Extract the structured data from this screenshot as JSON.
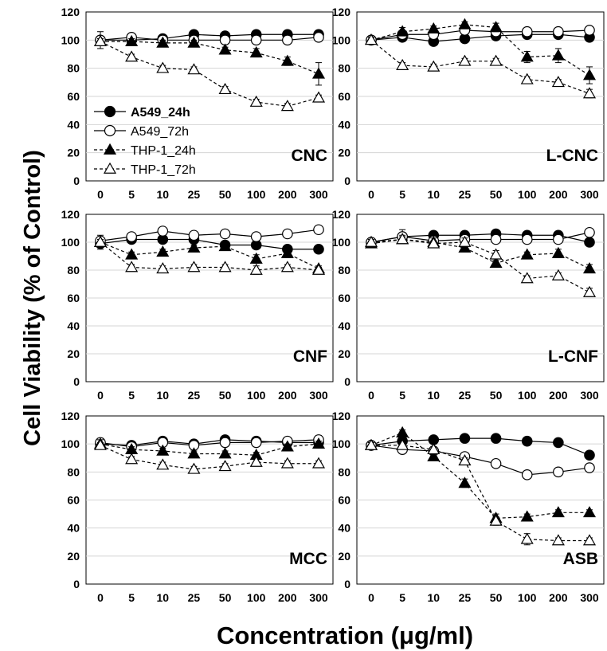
{
  "figure": {
    "ylabel": "Cell Viability (% of Control)",
    "xlabel": "Concentration (μg/ml)"
  },
  "chart_data": [
    {
      "type": "line",
      "panel_label": "CNC",
      "categories": [
        "0",
        "5",
        "10",
        "25",
        "50",
        "100",
        "200",
        "300"
      ],
      "ylim": [
        0,
        120
      ],
      "yticks": [
        "0",
        "20",
        "40",
        "60",
        "80",
        "100",
        "120"
      ],
      "grid": true,
      "legend_position": "lower-left",
      "series": [
        {
          "name": "A549_24h",
          "values": [
            100,
            100,
            101,
            104,
            103,
            104,
            104,
            104
          ],
          "errors": [
            2,
            2,
            2,
            2,
            2,
            2,
            2,
            2
          ]
        },
        {
          "name": "A549_72h",
          "values": [
            100,
            102,
            100,
            100,
            100,
            100,
            100,
            102
          ],
          "errors": [
            6,
            2,
            2,
            2,
            2,
            2,
            2,
            2
          ]
        },
        {
          "name": "THP-1_24h",
          "values": [
            99,
            99,
            98,
            98,
            93,
            91,
            85,
            76
          ],
          "errors": [
            2,
            2,
            2,
            2,
            2,
            3,
            3,
            8
          ]
        },
        {
          "name": "THP-1_72h",
          "values": [
            99,
            88,
            80,
            79,
            65,
            56,
            53,
            59
          ],
          "errors": [
            2,
            2,
            2,
            2,
            2,
            2,
            2,
            2
          ]
        }
      ]
    },
    {
      "type": "line",
      "panel_label": "L-CNC",
      "categories": [
        "0",
        "5",
        "10",
        "25",
        "50",
        "100",
        "200",
        "300"
      ],
      "ylim": [
        0,
        120
      ],
      "grid": true,
      "series": [
        {
          "name": "A549_24h",
          "values": [
            100,
            102,
            99,
            101,
            103,
            104,
            104,
            102
          ],
          "errors": [
            2,
            2,
            2,
            2,
            2,
            2,
            2,
            2
          ]
        },
        {
          "name": "A549_72h",
          "values": [
            100,
            104,
            104,
            107,
            106,
            106,
            106,
            107
          ],
          "errors": [
            2,
            2,
            2,
            2,
            2,
            2,
            2,
            2
          ]
        },
        {
          "name": "THP-1_24h",
          "values": [
            100,
            106,
            108,
            111,
            109,
            88,
            89,
            75
          ],
          "errors": [
            2,
            3,
            2,
            2,
            3,
            4,
            5,
            6
          ]
        },
        {
          "name": "THP-1_72h",
          "values": [
            100,
            82,
            81,
            85,
            85,
            72,
            70,
            62
          ],
          "errors": [
            2,
            2,
            2,
            2,
            2,
            2,
            2,
            3
          ]
        }
      ]
    },
    {
      "type": "line",
      "panel_label": "CNF",
      "categories": [
        "0",
        "5",
        "10",
        "25",
        "50",
        "100",
        "200",
        "300"
      ],
      "ylim": [
        0,
        120
      ],
      "grid": true,
      "series": [
        {
          "name": "A549_24h",
          "values": [
            99,
            102,
            102,
            102,
            98,
            98,
            95,
            95
          ],
          "errors": [
            2,
            2,
            2,
            2,
            2,
            2,
            2,
            2
          ]
        },
        {
          "name": "A549_72h",
          "values": [
            101,
            104,
            108,
            105,
            106,
            104,
            106,
            109
          ],
          "errors": [
            2,
            2,
            2,
            2,
            2,
            2,
            2,
            2
          ]
        },
        {
          "name": "THP-1_24h",
          "values": [
            100,
            91,
            93,
            96,
            97,
            88,
            92,
            81
          ],
          "errors": [
            5,
            2,
            2,
            2,
            2,
            3,
            3,
            2
          ]
        },
        {
          "name": "THP-1_72h",
          "values": [
            100,
            82,
            81,
            82,
            82,
            80,
            82,
            80
          ],
          "errors": [
            2,
            2,
            2,
            2,
            2,
            3,
            2,
            2
          ]
        }
      ]
    },
    {
      "type": "line",
      "panel_label": "L-CNF",
      "categories": [
        "0",
        "5",
        "10",
        "25",
        "50",
        "100",
        "200",
        "300"
      ],
      "ylim": [
        0,
        120
      ],
      "grid": true,
      "series": [
        {
          "name": "A549_24h",
          "values": [
            100,
            104,
            105,
            105,
            106,
            105,
            105,
            100
          ],
          "errors": [
            2,
            5,
            2,
            2,
            2,
            2,
            2,
            2
          ]
        },
        {
          "name": "A549_72h",
          "values": [
            100,
            104,
            101,
            102,
            102,
            102,
            102,
            107
          ],
          "errors": [
            3,
            2,
            2,
            2,
            2,
            2,
            2,
            2
          ]
        },
        {
          "name": "THP-1_24h",
          "values": [
            99,
            102,
            100,
            96,
            85,
            91,
            92,
            81
          ],
          "errors": [
            2,
            3,
            3,
            2,
            2,
            2,
            3,
            3
          ]
        },
        {
          "name": "THP-1_72h",
          "values": [
            100,
            102,
            99,
            100,
            91,
            74,
            76,
            64
          ],
          "errors": [
            2,
            2,
            2,
            3,
            3,
            2,
            2,
            3
          ]
        }
      ]
    },
    {
      "type": "line",
      "panel_label": "MCC",
      "categories": [
        "0",
        "5",
        "10",
        "25",
        "50",
        "100",
        "200",
        "300"
      ],
      "ylim": [
        0,
        120
      ],
      "grid": true,
      "series": [
        {
          "name": "A549_24h",
          "values": [
            100,
            99,
            102,
            100,
            103,
            102,
            101,
            101
          ],
          "errors": [
            2,
            2,
            2,
            2,
            2,
            2,
            2,
            2
          ]
        },
        {
          "name": "A549_72h",
          "values": [
            101,
            98,
            101,
            99,
            101,
            101,
            102,
            103
          ],
          "errors": [
            3,
            2,
            2,
            2,
            2,
            2,
            2,
            3
          ]
        },
        {
          "name": "THP-1_24h",
          "values": [
            100,
            96,
            95,
            93,
            93,
            92,
            98,
            100
          ],
          "errors": [
            3,
            2,
            2,
            2,
            2,
            2,
            2,
            2
          ]
        },
        {
          "name": "THP-1_72h",
          "values": [
            99,
            89,
            85,
            82,
            84,
            87,
            86,
            86
          ],
          "errors": [
            2,
            2,
            2,
            2,
            2,
            2,
            2,
            2
          ]
        }
      ]
    },
    {
      "type": "line",
      "panel_label": "ASB",
      "categories": [
        "0",
        "5",
        "10",
        "25",
        "50",
        "100",
        "200",
        "300"
      ],
      "ylim": [
        0,
        120
      ],
      "grid": true,
      "series": [
        {
          "name": "A549_24h",
          "values": [
            99,
            102,
            103,
            104,
            104,
            102,
            101,
            92
          ],
          "errors": [
            2,
            2,
            2,
            2,
            2,
            2,
            2,
            2
          ]
        },
        {
          "name": "A549_72h",
          "values": [
            99,
            96,
            95,
            91,
            86,
            78,
            80,
            83
          ],
          "errors": [
            2,
            2,
            2,
            2,
            2,
            2,
            2,
            2
          ]
        },
        {
          "name": "THP-1_24h",
          "values": [
            99,
            108,
            91,
            72,
            47,
            48,
            51,
            51
          ],
          "errors": [
            2,
            2,
            2,
            3,
            3,
            2,
            2,
            2
          ]
        },
        {
          "name": "THP-1_72h",
          "values": [
            99,
            99,
            96,
            88,
            45,
            32,
            31,
            31
          ],
          "errors": [
            2,
            2,
            2,
            2,
            3,
            4,
            2,
            2
          ]
        }
      ]
    }
  ]
}
